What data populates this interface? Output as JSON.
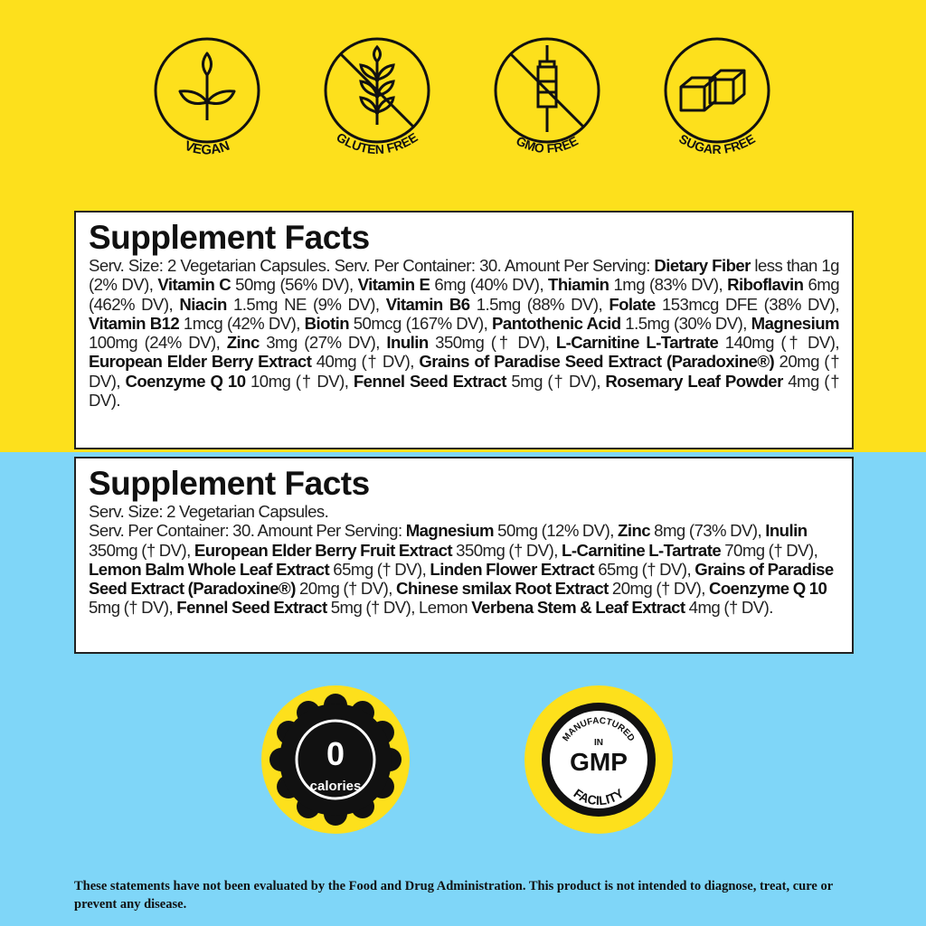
{
  "badges_top": [
    {
      "label": "VEGAN",
      "icon": "leaf-plant-icon"
    },
    {
      "label": "GLUTEN FREE",
      "icon": "wheat-crossed-icon"
    },
    {
      "label": "GMO FREE",
      "icon": "syringe-crossed-icon"
    },
    {
      "label": "SUGAR FREE",
      "icon": "sugar-cubes-crossed-icon"
    }
  ],
  "facts1": {
    "title": "Supplement Facts",
    "segments": [
      {
        "b": false,
        "t": "Serv. Size: 2 Vegetarian Capsules. Serv. Per Container: 30. Amount Per Serving: "
      },
      {
        "b": true,
        "t": "Dietary Fiber"
      },
      {
        "b": false,
        "t": " less than 1g (2% DV), "
      },
      {
        "b": true,
        "t": "Vitamin C"
      },
      {
        "b": false,
        "t": " 50mg (56% DV), "
      },
      {
        "b": true,
        "t": "Vitamin E"
      },
      {
        "b": false,
        "t": " 6mg (40% DV), "
      },
      {
        "b": true,
        "t": "Thiamin"
      },
      {
        "b": false,
        "t": " 1mg (83% DV), "
      },
      {
        "b": true,
        "t": "Riboflavin"
      },
      {
        "b": false,
        "t": " 6mg (462% DV), "
      },
      {
        "b": true,
        "t": "Niacin"
      },
      {
        "b": false,
        "t": " 1.5mg NE (9% DV), "
      },
      {
        "b": true,
        "t": "Vitamin B6"
      },
      {
        "b": false,
        "t": " 1.5mg (88% DV), "
      },
      {
        "b": true,
        "t": "Folate"
      },
      {
        "b": false,
        "t": " 153mcg DFE (38% DV), "
      },
      {
        "b": true,
        "t": "Vitamin B12"
      },
      {
        "b": false,
        "t": " 1mcg (42% DV), "
      },
      {
        "b": true,
        "t": "Biotin"
      },
      {
        "b": false,
        "t": " 50mcg (167% DV), "
      },
      {
        "b": true,
        "t": "Pantothenic Acid"
      },
      {
        "b": false,
        "t": " 1.5mg (30% DV), "
      },
      {
        "b": true,
        "t": "Magnesium"
      },
      {
        "b": false,
        "t": " 100mg (24% DV), "
      },
      {
        "b": true,
        "t": "Zinc"
      },
      {
        "b": false,
        "t": " 3mg (27% DV), "
      },
      {
        "b": true,
        "t": "Inulin"
      },
      {
        "b": false,
        "t": " 350mg († DV), "
      },
      {
        "b": true,
        "t": "L-Carnitine L-Tartrate"
      },
      {
        "b": false,
        "t": " 140mg († DV), "
      },
      {
        "b": true,
        "t": "European Elder Berry Extract"
      },
      {
        "b": false,
        "t": " 40mg († DV), "
      },
      {
        "b": true,
        "t": "Grains of Paradise Seed Extract (Paradoxine®)"
      },
      {
        "b": false,
        "t": " 20mg († DV), "
      },
      {
        "b": true,
        "t": "Coenzyme Q 10"
      },
      {
        "b": false,
        "t": " 10mg († DV), "
      },
      {
        "b": true,
        "t": "Fennel Seed Extract"
      },
      {
        "b": false,
        "t": " 5mg († DV), "
      },
      {
        "b": true,
        "t": "Rosemary Leaf Powder"
      },
      {
        "b": false,
        "t": " 4mg († DV)."
      }
    ]
  },
  "facts2": {
    "title": "Supplement Facts",
    "serving_size": "Serv. Size: 2 Vegetarian Capsules.",
    "segments": [
      {
        "b": false,
        "t": "Serv. Per Container: 30. Amount Per Serving: "
      },
      {
        "b": true,
        "t": "Magnesium"
      },
      {
        "b": false,
        "t": " 50mg (12% DV), "
      },
      {
        "b": true,
        "t": "Zinc"
      },
      {
        "b": false,
        "t": " 8mg (73% DV), "
      },
      {
        "b": true,
        "t": "Inulin"
      },
      {
        "b": false,
        "t": " 350mg († DV), "
      },
      {
        "b": true,
        "t": "European Elder Berry  Fruit Extract"
      },
      {
        "b": false,
        "t": " 350mg († DV), "
      },
      {
        "b": true,
        "t": "L-Carnitine L-Tartrate"
      },
      {
        "b": false,
        "t": " 70mg († DV), "
      },
      {
        "b": true,
        "t": "Lemon Balm Whole Leaf Extract"
      },
      {
        "b": false,
        "t": " 65mg († DV), "
      },
      {
        "b": true,
        "t": "Linden Flower Extract"
      },
      {
        "b": false,
        "t": " 65mg († DV), "
      },
      {
        "b": true,
        "t": "Grains of Paradise Seed Extract (Paradoxine®)"
      },
      {
        "b": false,
        "t": " 20mg († DV), "
      },
      {
        "b": true,
        "t": "Chinese smilax Root Extract"
      },
      {
        "b": false,
        "t": " 20mg († DV), "
      },
      {
        "b": true,
        "t": "Coenzyme Q 10"
      },
      {
        "b": false,
        "t": " 5mg († DV), "
      },
      {
        "b": true,
        "t": "Fennel Seed Extract"
      },
      {
        "b": false,
        "t": " 5mg († DV), Lemon "
      },
      {
        "b": true,
        "t": "Verbena Stem & Leaf Extract"
      },
      {
        "b": false,
        "t": " 4mg († DV)."
      }
    ]
  },
  "calories_badge": {
    "number": "0",
    "label": "calories"
  },
  "gmp_badge": {
    "top": "MANUFACTURED",
    "in": "IN",
    "main": "GMP",
    "bottom": "FACILITY"
  },
  "footer": "These statements have not been evaluated by the Food and Drug Administration. This product is not intended to diagnose, treat, cure or prevent any disease.",
  "colors": {
    "yellow": "#fde01c",
    "blue": "#7fd6f8",
    "ink": "#111111"
  }
}
